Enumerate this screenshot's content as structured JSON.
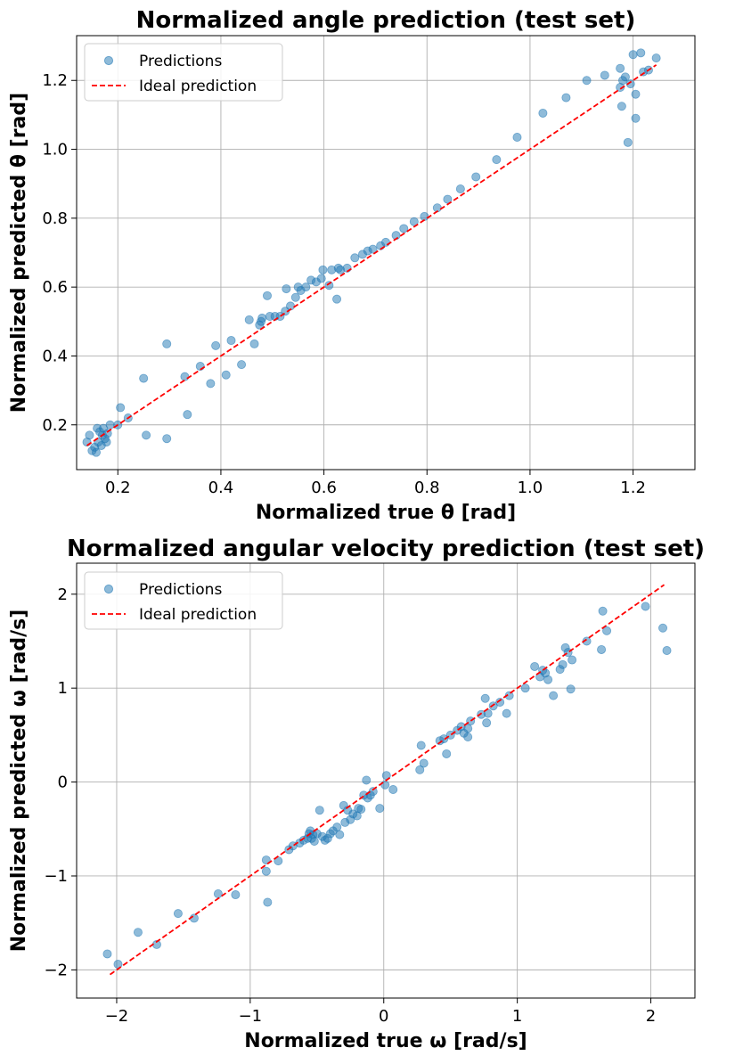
{
  "chart_data": [
    {
      "type": "scatter",
      "title": "Normalized angle prediction (test set)",
      "xlabel": "Normalized true θ [rad]",
      "ylabel": "Normalized predicted θ [rad]",
      "xlim": [
        0.12,
        1.32
      ],
      "ylim": [
        0.07,
        1.33
      ],
      "xticks": [
        0.2,
        0.4,
        0.6,
        0.8,
        1.0,
        1.2
      ],
      "xtick_labels": [
        "0.2",
        "0.4",
        "0.6",
        "0.8",
        "1.0",
        "1.2"
      ],
      "yticks": [
        0.2,
        0.4,
        0.6,
        0.8,
        1.0,
        1.2
      ],
      "ytick_labels": [
        "0.2",
        "0.4",
        "0.6",
        "0.8",
        "1.0",
        "1.2"
      ],
      "grid": true,
      "legend_position": "top-left",
      "legend": {
        "points": "Predictions",
        "line": "Ideal prediction"
      },
      "colors": {
        "points": "#1f77b4",
        "line": "#ff0000"
      },
      "ideal_line": [
        [
          0.14,
          0.14
        ],
        [
          1.245,
          1.245
        ]
      ],
      "series": [
        {
          "points": [
            [
              0.14,
              0.15
            ],
            [
              0.145,
              0.17
            ],
            [
              0.15,
              0.125
            ],
            [
              0.155,
              0.135
            ],
            [
              0.158,
              0.12
            ],
            [
              0.16,
              0.19
            ],
            [
              0.162,
              0.15
            ],
            [
              0.165,
              0.18
            ],
            [
              0.168,
              0.14
            ],
            [
              0.17,
              0.17
            ],
            [
              0.172,
              0.19
            ],
            [
              0.175,
              0.16
            ],
            [
              0.178,
              0.15
            ],
            [
              0.18,
              0.175
            ],
            [
              0.185,
              0.2
            ],
            [
              0.2,
              0.2
            ],
            [
              0.205,
              0.25
            ],
            [
              0.22,
              0.22
            ],
            [
              0.25,
              0.335
            ],
            [
              0.255,
              0.17
            ],
            [
              0.295,
              0.435
            ],
            [
              0.295,
              0.16
            ],
            [
              0.33,
              0.34
            ],
            [
              0.335,
              0.23
            ],
            [
              0.36,
              0.37
            ],
            [
              0.38,
              0.32
            ],
            [
              0.39,
              0.43
            ],
            [
              0.41,
              0.345
            ],
            [
              0.42,
              0.445
            ],
            [
              0.44,
              0.375
            ],
            [
              0.455,
              0.505
            ],
            [
              0.465,
              0.435
            ],
            [
              0.475,
              0.49
            ],
            [
              0.478,
              0.5
            ],
            [
              0.48,
              0.51
            ],
            [
              0.49,
              0.575
            ],
            [
              0.495,
              0.515
            ],
            [
              0.505,
              0.515
            ],
            [
              0.515,
              0.515
            ],
            [
              0.525,
              0.53
            ],
            [
              0.527,
              0.595
            ],
            [
              0.535,
              0.545
            ],
            [
              0.545,
              0.57
            ],
            [
              0.55,
              0.6
            ],
            [
              0.555,
              0.59
            ],
            [
              0.565,
              0.6
            ],
            [
              0.575,
              0.62
            ],
            [
              0.585,
              0.615
            ],
            [
              0.595,
              0.625
            ],
            [
              0.598,
              0.65
            ],
            [
              0.61,
              0.605
            ],
            [
              0.615,
              0.65
            ],
            [
              0.625,
              0.565
            ],
            [
              0.628,
              0.655
            ],
            [
              0.632,
              0.65
            ],
            [
              0.645,
              0.655
            ],
            [
              0.66,
              0.685
            ],
            [
              0.675,
              0.695
            ],
            [
              0.685,
              0.705
            ],
            [
              0.695,
              0.71
            ],
            [
              0.71,
              0.72
            ],
            [
              0.72,
              0.73
            ],
            [
              0.74,
              0.75
            ],
            [
              0.755,
              0.77
            ],
            [
              0.775,
              0.79
            ],
            [
              0.795,
              0.805
            ],
            [
              0.82,
              0.83
            ],
            [
              0.84,
              0.855
            ],
            [
              0.865,
              0.885
            ],
            [
              0.895,
              0.92
            ],
            [
              0.935,
              0.97
            ],
            [
              0.975,
              1.035
            ],
            [
              1.025,
              1.105
            ],
            [
              1.07,
              1.15
            ],
            [
              1.11,
              1.2
            ],
            [
              1.145,
              1.215
            ],
            [
              1.175,
              1.235
            ],
            [
              1.175,
              1.18
            ],
            [
              1.18,
              1.2
            ],
            [
              1.185,
              1.21
            ],
            [
              1.19,
              1.02
            ],
            [
              1.195,
              1.19
            ],
            [
              1.2,
              1.275
            ],
            [
              1.205,
              1.16
            ],
            [
              1.205,
              1.09
            ],
            [
              1.215,
              1.28
            ],
            [
              1.22,
              1.225
            ],
            [
              1.23,
              1.23
            ],
            [
              1.245,
              1.265
            ],
            [
              1.178,
              1.125
            ]
          ]
        }
      ]
    },
    {
      "type": "scatter",
      "title": "Normalized angular velocity prediction (test set)",
      "xlabel": "Normalized true ω [rad/s]",
      "ylabel": "Normalized predicted ω [rad/s]",
      "xlim": [
        -2.3,
        2.33
      ],
      "ylim": [
        -2.3,
        2.33
      ],
      "xticks": [
        -2,
        -1,
        0,
        1,
        2
      ],
      "xtick_labels": [
        "−2",
        "−1",
        "0",
        "1",
        "2"
      ],
      "yticks": [
        -2,
        -1,
        0,
        1,
        2
      ],
      "ytick_labels": [
        "−2",
        "−1",
        "0",
        "1",
        "2"
      ],
      "grid": true,
      "legend_position": "top-left",
      "legend": {
        "points": "Predictions",
        "line": "Ideal prediction"
      },
      "colors": {
        "points": "#1f77b4",
        "line": "#ff0000"
      },
      "ideal_line": [
        [
          -2.05,
          -2.05
        ],
        [
          2.1,
          2.1
        ]
      ],
      "series": [
        {
          "points": [
            [
              -2.07,
              -1.83
            ],
            [
              -1.99,
              -1.94
            ],
            [
              -1.84,
              -1.6
            ],
            [
              -1.7,
              -1.73
            ],
            [
              -1.54,
              -1.4
            ],
            [
              -1.42,
              -1.45
            ],
            [
              -1.24,
              -1.19
            ],
            [
              -1.11,
              -1.2
            ],
            [
              -0.88,
              -0.83
            ],
            [
              -0.88,
              -0.95
            ],
            [
              -0.87,
              -1.28
            ],
            [
              -0.79,
              -0.84
            ],
            [
              -0.71,
              -0.72
            ],
            [
              -0.68,
              -0.68
            ],
            [
              -0.63,
              -0.65
            ],
            [
              -0.6,
              -0.62
            ],
            [
              -0.57,
              -0.6
            ],
            [
              -0.56,
              -0.55
            ],
            [
              -0.55,
              -0.52
            ],
            [
              -0.54,
              -0.6
            ],
            [
              -0.53,
              -0.56
            ],
            [
              -0.52,
              -0.63
            ],
            [
              -0.5,
              -0.55
            ],
            [
              -0.48,
              -0.3
            ],
            [
              -0.46,
              -0.58
            ],
            [
              -0.44,
              -0.62
            ],
            [
              -0.42,
              -0.6
            ],
            [
              -0.4,
              -0.55
            ],
            [
              -0.38,
              -0.52
            ],
            [
              -0.35,
              -0.48
            ],
            [
              -0.33,
              -0.56
            ],
            [
              -0.3,
              -0.25
            ],
            [
              -0.29,
              -0.43
            ],
            [
              -0.27,
              -0.3
            ],
            [
              -0.25,
              -0.4
            ],
            [
              -0.23,
              -0.34
            ],
            [
              -0.2,
              -0.36
            ],
            [
              -0.19,
              -0.28
            ],
            [
              -0.17,
              -0.29
            ],
            [
              -0.15,
              -0.14
            ],
            [
              -0.13,
              0.02
            ],
            [
              -0.12,
              -0.17
            ],
            [
              -0.1,
              -0.14
            ],
            [
              -0.08,
              -0.1
            ],
            [
              -0.03,
              -0.28
            ],
            [
              0.01,
              -0.03
            ],
            [
              0.02,
              0.07
            ],
            [
              0.07,
              -0.08
            ],
            [
              0.27,
              0.13
            ],
            [
              0.28,
              0.39
            ],
            [
              0.3,
              0.2
            ],
            [
              0.42,
              0.44
            ],
            [
              0.45,
              0.46
            ],
            [
              0.47,
              0.3
            ],
            [
              0.5,
              0.5
            ],
            [
              0.55,
              0.55
            ],
            [
              0.58,
              0.59
            ],
            [
              0.6,
              0.52
            ],
            [
              0.63,
              0.57
            ],
            [
              0.63,
              0.48
            ],
            [
              0.65,
              0.65
            ],
            [
              0.73,
              0.72
            ],
            [
              0.76,
              0.89
            ],
            [
              0.77,
              0.63
            ],
            [
              0.78,
              0.73
            ],
            [
              0.82,
              0.81
            ],
            [
              0.87,
              0.85
            ],
            [
              0.92,
              0.73
            ],
            [
              0.94,
              0.92
            ],
            [
              1.06,
              1.0
            ],
            [
              1.13,
              1.23
            ],
            [
              1.17,
              1.12
            ],
            [
              1.19,
              1.19
            ],
            [
              1.21,
              1.16
            ],
            [
              1.23,
              1.09
            ],
            [
              1.27,
              0.92
            ],
            [
              1.32,
              1.2
            ],
            [
              1.34,
              1.25
            ],
            [
              1.36,
              1.43
            ],
            [
              1.38,
              1.38
            ],
            [
              1.4,
              0.99
            ],
            [
              1.41,
              1.3
            ],
            [
              1.52,
              1.5
            ],
            [
              1.63,
              1.41
            ],
            [
              1.64,
              1.82
            ],
            [
              1.67,
              1.61
            ],
            [
              1.96,
              1.87
            ],
            [
              2.09,
              1.64
            ],
            [
              2.12,
              1.4
            ]
          ]
        }
      ]
    }
  ]
}
